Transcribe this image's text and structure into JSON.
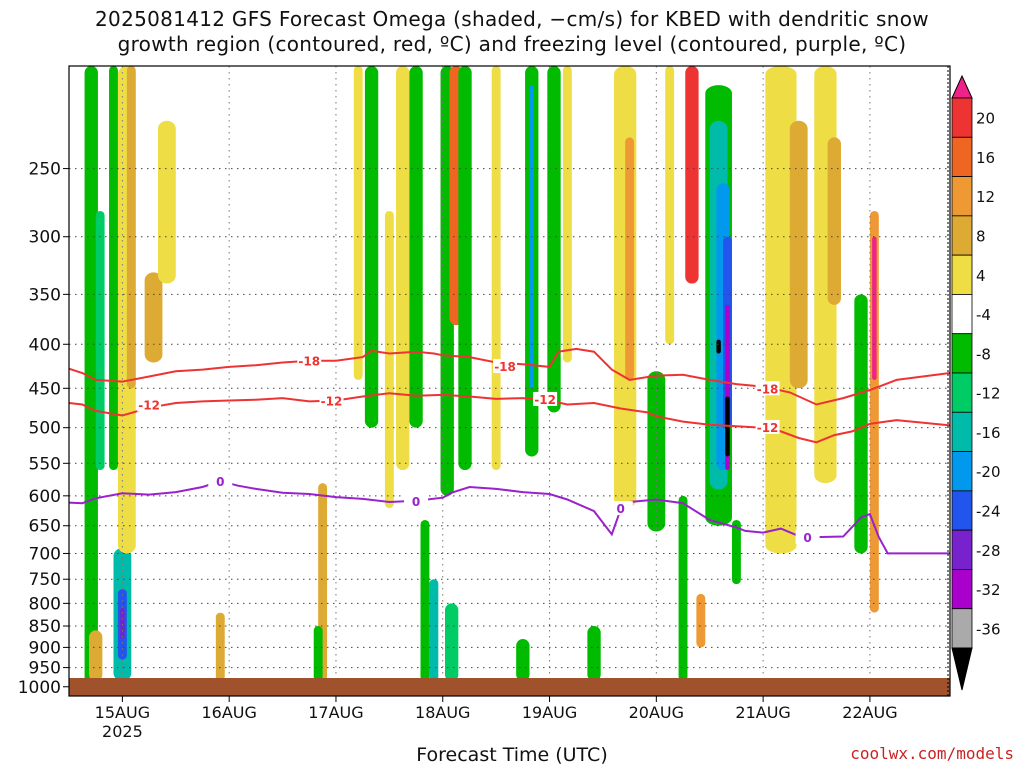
{
  "title": {
    "line1": "2025081412 GFS Forecast Omega (shaded, −cm/s) for KBED with dendritic snow",
    "line2": "growth region (contoured, red, ºC) and freezing level (contoured, purple, ºC)"
  },
  "credit": "coolwx.com/models",
  "chart_data": {
    "type": "heatmap",
    "xlabel": "Forecast Time (UTC)",
    "ylabel": "",
    "y_scale": "log-pressure (inverted)",
    "ylim": [
      1025,
      190
    ],
    "yticks": [
      250,
      300,
      350,
      400,
      450,
      500,
      550,
      600,
      650,
      700,
      750,
      800,
      850,
      900,
      950,
      1000
    ],
    "x_range_hours": [
      0,
      198
    ],
    "xticks": [
      {
        "label": "15AUG",
        "sub": "2025",
        "hour": 12
      },
      {
        "label": "16AUG",
        "sub": "",
        "hour": 36
      },
      {
        "label": "17AUG",
        "sub": "",
        "hour": 60
      },
      {
        "label": "18AUG",
        "sub": "",
        "hour": 84
      },
      {
        "label": "19AUG",
        "sub": "",
        "hour": 108
      },
      {
        "label": "20AUG",
        "sub": "",
        "hour": 132
      },
      {
        "label": "21AUG",
        "sub": "",
        "hour": 156
      },
      {
        "label": "22AUG",
        "sub": "",
        "hour": 180
      }
    ],
    "grid": true,
    "colorbar": {
      "labels": [
        "20",
        "16",
        "12",
        "8",
        "4",
        "-4",
        "-8",
        "-12",
        "-16",
        "-20",
        "-24",
        "-28",
        "-32",
        "-36"
      ],
      "colors": [
        "#ee2288",
        "#ee3333",
        "#ee6622",
        "#ee9933",
        "#ddaa33",
        "#eedd44",
        "#ffffff",
        "#00bb00",
        "#00cc66",
        "#00bbaa",
        "#0099ee",
        "#2255ee",
        "#7722cc",
        "#aa00cc",
        "#aaaaaa",
        "#000000"
      ]
    },
    "contours": [
      {
        "value": -18,
        "color": "#ee3333",
        "points": [
          [
            0,
            427
          ],
          [
            3,
            432
          ],
          [
            6,
            440
          ],
          [
            12,
            442
          ],
          [
            18,
            436
          ],
          [
            24,
            430
          ],
          [
            30,
            428
          ],
          [
            36,
            425
          ],
          [
            42,
            423
          ],
          [
            48,
            420
          ],
          [
            54,
            418
          ],
          [
            60,
            418
          ],
          [
            66,
            414
          ],
          [
            68,
            407
          ],
          [
            72,
            410
          ],
          [
            78,
            408
          ],
          [
            82,
            410
          ],
          [
            84,
            412
          ],
          [
            90,
            414
          ],
          [
            96,
            420
          ],
          [
            102,
            422
          ],
          [
            108,
            425
          ],
          [
            110,
            408
          ],
          [
            114,
            405
          ],
          [
            118,
            408
          ],
          [
            122,
            428
          ],
          [
            126,
            440
          ],
          [
            132,
            435
          ],
          [
            138,
            434
          ],
          [
            144,
            440
          ],
          [
            150,
            445
          ],
          [
            156,
            448
          ],
          [
            162,
            455
          ],
          [
            168,
            470
          ],
          [
            174,
            462
          ],
          [
            180,
            452
          ],
          [
            186,
            440
          ],
          [
            198,
            432
          ]
        ],
        "labels": [
          {
            "hour": 54,
            "p": 418
          },
          {
            "hour": 98,
            "p": 424
          },
          {
            "hour": 157,
            "p": 450
          }
        ]
      },
      {
        "value": -12,
        "color": "#ee3333",
        "points": [
          [
            0,
            468
          ],
          [
            3,
            470
          ],
          [
            6,
            478
          ],
          [
            12,
            484
          ],
          [
            18,
            474
          ],
          [
            24,
            468
          ],
          [
            30,
            466
          ],
          [
            36,
            465
          ],
          [
            42,
            464
          ],
          [
            48,
            462
          ],
          [
            54,
            466
          ],
          [
            60,
            465
          ],
          [
            66,
            460
          ],
          [
            72,
            456
          ],
          [
            78,
            459
          ],
          [
            84,
            458
          ],
          [
            90,
            460
          ],
          [
            96,
            463
          ],
          [
            102,
            462
          ],
          [
            108,
            465
          ],
          [
            112,
            470
          ],
          [
            118,
            468
          ],
          [
            124,
            475
          ],
          [
            130,
            480
          ],
          [
            132,
            485
          ],
          [
            138,
            492
          ],
          [
            144,
            496
          ],
          [
            150,
            498
          ],
          [
            156,
            500
          ],
          [
            160,
            505
          ],
          [
            164,
            514
          ],
          [
            168,
            520
          ],
          [
            172,
            510
          ],
          [
            176,
            505
          ],
          [
            180,
            495
          ],
          [
            186,
            490
          ],
          [
            198,
            497
          ]
        ],
        "labels": [
          {
            "hour": 18,
            "p": 470
          },
          {
            "hour": 59,
            "p": 465
          },
          {
            "hour": 107,
            "p": 463
          },
          {
            "hour": 157,
            "p": 499
          }
        ]
      },
      {
        "value": 0,
        "color": "#9922cc",
        "points": [
          [
            0,
            611
          ],
          [
            3,
            612
          ],
          [
            6,
            604
          ],
          [
            12,
            596
          ],
          [
            18,
            598
          ],
          [
            24,
            594
          ],
          [
            30,
            586
          ],
          [
            34,
            577
          ],
          [
            38,
            584
          ],
          [
            42,
            589
          ],
          [
            48,
            595
          ],
          [
            54,
            597
          ],
          [
            60,
            602
          ],
          [
            66,
            605
          ],
          [
            72,
            610
          ],
          [
            78,
            608
          ],
          [
            84,
            603
          ],
          [
            86,
            595
          ],
          [
            90,
            586
          ],
          [
            96,
            589
          ],
          [
            102,
            594
          ],
          [
            108,
            597
          ],
          [
            112,
            606
          ],
          [
            118,
            625
          ],
          [
            122,
            665
          ],
          [
            124,
            622
          ],
          [
            126,
            610
          ],
          [
            132,
            606
          ],
          [
            138,
            612
          ],
          [
            144,
            640
          ],
          [
            150,
            653
          ],
          [
            152,
            659
          ],
          [
            156,
            662
          ],
          [
            160,
            655
          ],
          [
            164,
            668
          ],
          [
            168,
            670
          ],
          [
            174,
            669
          ],
          [
            178,
            636
          ],
          [
            180,
            630
          ],
          [
            182,
            670
          ],
          [
            184,
            700
          ],
          [
            198,
            700
          ]
        ],
        "labels": [
          {
            "hour": 34,
            "p": 577
          },
          {
            "hour": 78,
            "p": 608
          },
          {
            "hour": 124,
            "p": 620
          },
          {
            "hour": 166,
            "p": 670
          }
        ]
      }
    ],
    "shaded_regions": [
      {
        "hour": 5,
        "p_top": 170,
        "p_bot": 1000,
        "w": 3,
        "color": "#00bb00",
        "level": -6
      },
      {
        "hour": 7,
        "p_top": 280,
        "p_bot": 560,
        "w": 2,
        "color": "#00cc66",
        "level": -10
      },
      {
        "hour": 10,
        "p_top": 180,
        "p_bot": 560,
        "w": 2,
        "color": "#00bb00",
        "level": -6
      },
      {
        "hour": 12,
        "p_top": 690,
        "p_bot": 985,
        "w": 4,
        "color": "#00bbaa",
        "level": -14
      },
      {
        "hour": 12,
        "p_top": 770,
        "p_bot": 930,
        "w": 2,
        "color": "#2255ee",
        "level": -22
      },
      {
        "hour": 12,
        "p_top": 810,
        "p_bot": 880,
        "w": 1,
        "color": "#7722cc",
        "level": -26
      },
      {
        "hour": 6,
        "p_top": 860,
        "p_bot": 985,
        "w": 3,
        "color": "#ddaa33",
        "level": 6
      },
      {
        "hour": 13,
        "p_top": 170,
        "p_bot": 700,
        "w": 4,
        "color": "#eedd44",
        "level": 5
      },
      {
        "hour": 14,
        "p_top": 190,
        "p_bot": 450,
        "w": 2,
        "color": "#ddaa33",
        "level": 6
      },
      {
        "hour": 19,
        "p_top": 330,
        "p_bot": 420,
        "w": 4,
        "color": "#ddaa33",
        "level": 7
      },
      {
        "hour": 22,
        "p_top": 220,
        "p_bot": 340,
        "w": 4,
        "color": "#eedd44",
        "level": 5
      },
      {
        "hour": 34,
        "p_top": 820,
        "p_bot": 985,
        "w": 2,
        "color": "#ddaa33",
        "level": 6
      },
      {
        "hour": 57,
        "p_top": 580,
        "p_bot": 985,
        "w": 2,
        "color": "#ddaa33",
        "level": 6
      },
      {
        "hour": 56,
        "p_top": 850,
        "p_bot": 985,
        "w": 2,
        "color": "#00bb00",
        "level": -6
      },
      {
        "hour": 65,
        "p_top": 190,
        "p_bot": 440,
        "w": 2,
        "color": "#eedd44",
        "level": 5
      },
      {
        "hour": 68,
        "p_top": 170,
        "p_bot": 500,
        "w": 3,
        "color": "#00bb00",
        "level": -6
      },
      {
        "hour": 72,
        "p_top": 280,
        "p_bot": 620,
        "w": 2,
        "color": "#eedd44",
        "level": 5
      },
      {
        "hour": 75,
        "p_top": 170,
        "p_bot": 560,
        "w": 3,
        "color": "#eedd44",
        "level": 5
      },
      {
        "hour": 78,
        "p_top": 170,
        "p_bot": 500,
        "w": 3,
        "color": "#00bb00",
        "level": -6
      },
      {
        "hour": 80,
        "p_top": 640,
        "p_bot": 985,
        "w": 2,
        "color": "#00bb00",
        "level": -6
      },
      {
        "hour": 82,
        "p_top": 750,
        "p_bot": 985,
        "w": 2,
        "color": "#00bbaa",
        "level": -14
      },
      {
        "hour": 85,
        "p_top": 170,
        "p_bot": 600,
        "w": 3,
        "color": "#00bb00",
        "level": -6
      },
      {
        "hour": 87,
        "p_top": 170,
        "p_bot": 380,
        "w": 3,
        "color": "#ee6622",
        "level": 12
      },
      {
        "hour": 89,
        "p_top": 170,
        "p_bot": 560,
        "w": 3,
        "color": "#00bb00",
        "level": -6
      },
      {
        "hour": 86,
        "p_top": 800,
        "p_bot": 985,
        "w": 3,
        "color": "#00cc66",
        "level": -10
      },
      {
        "hour": 96,
        "p_top": 170,
        "p_bot": 560,
        "w": 2,
        "color": "#eedd44",
        "level": 5
      },
      {
        "hour": 104,
        "p_top": 170,
        "p_bot": 540,
        "w": 3,
        "color": "#00bb00",
        "level": -6
      },
      {
        "hour": 104,
        "p_top": 200,
        "p_bot": 450,
        "w": 1,
        "color": "#0099ee",
        "level": -18
      },
      {
        "hour": 102,
        "p_top": 880,
        "p_bot": 985,
        "w": 3,
        "color": "#00bb00",
        "level": -6
      },
      {
        "hour": 109,
        "p_top": 170,
        "p_bot": 480,
        "w": 3,
        "color": "#00bb00",
        "level": -6
      },
      {
        "hour": 112,
        "p_top": 170,
        "p_bot": 420,
        "w": 2,
        "color": "#eedd44",
        "level": 5
      },
      {
        "hour": 118,
        "p_top": 850,
        "p_bot": 985,
        "w": 3,
        "color": "#00bb00",
        "level": -6
      },
      {
        "hour": 125,
        "p_top": 170,
        "p_bot": 620,
        "w": 5,
        "color": "#eedd44",
        "level": 5
      },
      {
        "hour": 126,
        "p_top": 230,
        "p_bot": 440,
        "w": 2,
        "color": "#ee9933",
        "level": 9
      },
      {
        "hour": 132,
        "p_top": 430,
        "p_bot": 660,
        "w": 4,
        "color": "#00bb00",
        "level": -6
      },
      {
        "hour": 135,
        "p_top": 170,
        "p_bot": 400,
        "w": 2,
        "color": "#eedd44",
        "level": 5
      },
      {
        "hour": 138,
        "p_top": 600,
        "p_bot": 985,
        "w": 2,
        "color": "#00bb00",
        "level": -6
      },
      {
        "hour": 140,
        "p_top": 170,
        "p_bot": 340,
        "w": 3,
        "color": "#ee3333",
        "level": 16
      },
      {
        "hour": 146,
        "p_top": 200,
        "p_bot": 650,
        "w": 6,
        "color": "#00bb00",
        "level": -6
      },
      {
        "hour": 146,
        "p_top": 220,
        "p_bot": 590,
        "w": 4,
        "color": "#00bbaa",
        "level": -14
      },
      {
        "hour": 147,
        "p_top": 260,
        "p_bot": 560,
        "w": 3,
        "color": "#0099ee",
        "level": -18
      },
      {
        "hour": 148,
        "p_top": 300,
        "p_bot": 500,
        "w": 2,
        "color": "#2255ee",
        "level": -22
      },
      {
        "hour": 148,
        "p_top": 360,
        "p_bot": 560,
        "w": 1,
        "color": "#aa00cc",
        "level": -30
      },
      {
        "hour": 146,
        "p_top": 395,
        "p_bot": 410,
        "w": 1,
        "color": "#000000",
        "level": -36
      },
      {
        "hour": 148,
        "p_top": 460,
        "p_bot": 540,
        "w": 1,
        "color": "#000000",
        "level": -36
      },
      {
        "hour": 142,
        "p_top": 780,
        "p_bot": 900,
        "w": 2,
        "color": "#ee9933",
        "level": 8
      },
      {
        "hour": 150,
        "p_top": 640,
        "p_bot": 760,
        "w": 2,
        "color": "#00bb00",
        "level": -6
      },
      {
        "hour": 160,
        "p_top": 170,
        "p_bot": 700,
        "w": 7,
        "color": "#eedd44",
        "level": 5
      },
      {
        "hour": 164,
        "p_top": 220,
        "p_bot": 450,
        "w": 4,
        "color": "#ddaa33",
        "level": 7
      },
      {
        "hour": 170,
        "p_top": 170,
        "p_bot": 580,
        "w": 5,
        "color": "#eedd44",
        "level": 5
      },
      {
        "hour": 172,
        "p_top": 230,
        "p_bot": 360,
        "w": 3,
        "color": "#ddaa33",
        "level": 7
      },
      {
        "hour": 178,
        "p_top": 350,
        "p_bot": 700,
        "w": 3,
        "color": "#00bb00",
        "level": -6
      },
      {
        "hour": 181,
        "p_top": 280,
        "p_bot": 820,
        "w": 2,
        "color": "#ee9933",
        "level": 9
      },
      {
        "hour": 181,
        "p_top": 300,
        "p_bot": 440,
        "w": 1,
        "color": "#ee2288",
        "level": 20
      }
    ],
    "surface_color": "#a0522d"
  }
}
